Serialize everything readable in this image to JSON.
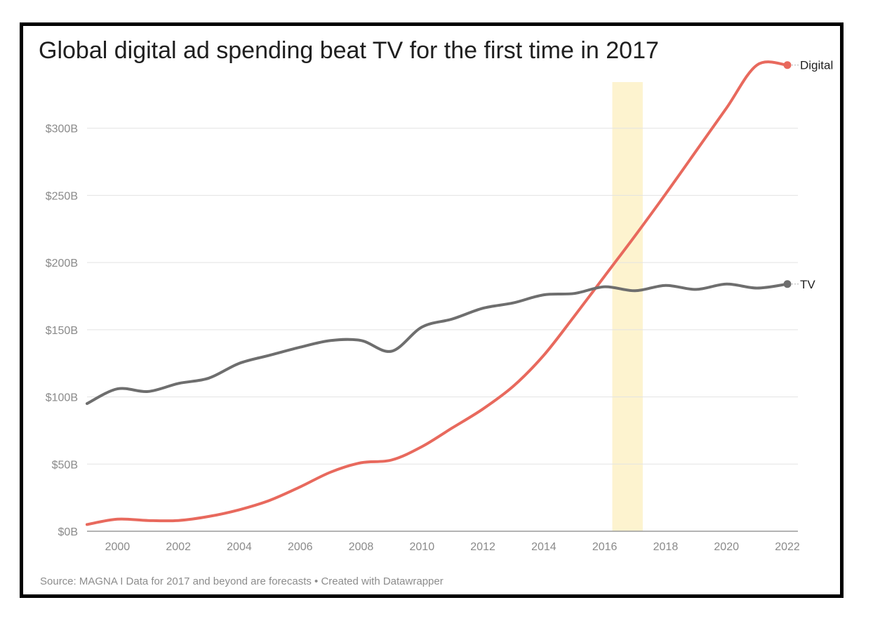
{
  "chart_data": {
    "type": "line",
    "title": "Global digital ad spending beat TV for the first time in 2017",
    "source": "Source: MAGNA I Data for 2017 and beyond are forecasts • Created with Datawrapper",
    "xlabel": "",
    "ylabel": "",
    "xlim": [
      1999,
      2022
    ],
    "ylim": [
      0,
      350
    ],
    "x_ticks": [
      2000,
      2002,
      2004,
      2006,
      2008,
      2010,
      2012,
      2014,
      2016,
      2018,
      2020,
      2022
    ],
    "x_tick_labels": [
      "2000",
      "2002",
      "2004",
      "2006",
      "2008",
      "2010",
      "2012",
      "2014",
      "2016",
      "2018",
      "2020",
      "2022"
    ],
    "y_ticks": [
      0,
      50,
      100,
      150,
      200,
      250,
      300
    ],
    "y_tick_labels": [
      "$0B",
      "$50B",
      "$100B",
      "$150B",
      "$200B",
      "$250B",
      "$300B"
    ],
    "grid": true,
    "highlight_band": {
      "from": 2016.25,
      "to": 2017.25,
      "color": "#fdf3cf"
    },
    "x": [
      1999,
      2000,
      2001,
      2002,
      2003,
      2004,
      2005,
      2006,
      2007,
      2008,
      2009,
      2010,
      2011,
      2012,
      2013,
      2014,
      2015,
      2016,
      2017,
      2018,
      2019,
      2020,
      2021,
      2022
    ],
    "series": [
      {
        "name": "Digital",
        "color": "#e8695d",
        "values": [
          5,
          9,
          8,
          8,
          11,
          16,
          23,
          33,
          44,
          51,
          53,
          63,
          77,
          91,
          108,
          131,
          160,
          190,
          220,
          251,
          283,
          315,
          347,
          347
        ]
      },
      {
        "name": "TV",
        "color": "#6e6e6e",
        "values": [
          95,
          106,
          104,
          110,
          114,
          125,
          131,
          137,
          142,
          142,
          134,
          152,
          158,
          166,
          170,
          176,
          177,
          182,
          179,
          183,
          180,
          184,
          181,
          184
        ]
      }
    ]
  }
}
